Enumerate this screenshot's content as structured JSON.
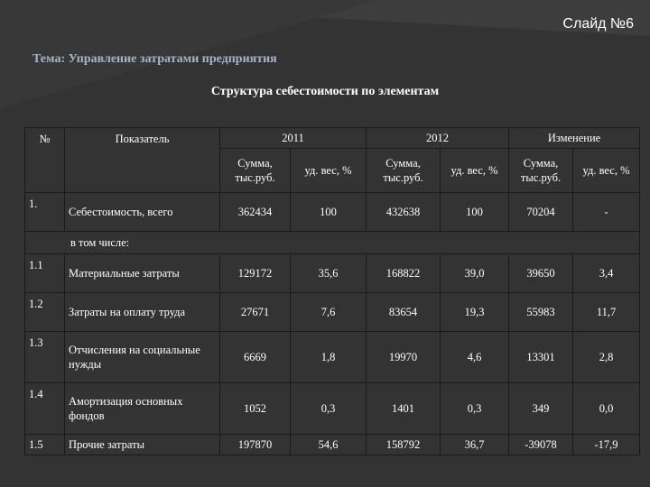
{
  "slide_label": "Слайд №6",
  "topic": "Тема: Управление затратами предприятия",
  "table_title": "Структура себестоимости по элементам",
  "table": {
    "header": {
      "num": "№",
      "indicator": "Показатель",
      "y2011": "2011",
      "y2012": "2012",
      "change": "Изменение",
      "sum": "Сумма, тыс.руб.",
      "share": "уд. вес, %"
    },
    "rows": [
      {
        "num": "1.",
        "name": "Себестоимость, всего",
        "s2011": "362434",
        "w2011": "100",
        "s2012": "432638",
        "w2012": "100",
        "sch": "70204",
        "wch": "-"
      },
      {
        "num": "1.1",
        "name": "Материальные затраты",
        "s2011": "129172",
        "w2011": "35,6",
        "s2012": "168822",
        "w2012": "39,0",
        "sch": "39650",
        "wch": "3,4"
      },
      {
        "num": "1.2",
        "name": "Затраты на оплату труда",
        "s2011": "27671",
        "w2011": "7,6",
        "s2012": "83654",
        "w2012": "19,3",
        "sch": "55983",
        "wch": "11,7"
      },
      {
        "num": "1.3",
        "name": "Отчисления на социальные нужды",
        "s2011": "6669",
        "w2011": "1,8",
        "s2012": "19970",
        "w2012": "4,6",
        "sch": "13301",
        "wch": "2,8"
      },
      {
        "num": "1.4",
        "name": "Амортизация основных фондов",
        "s2011": "1052",
        "w2011": "0,3",
        "s2012": "1401",
        "w2012": "0,3",
        "sch": "349",
        "wch": "0,0"
      },
      {
        "num": "1.5",
        "name": "Прочие затраты",
        "s2011": "197870",
        "w2011": "54,6",
        "s2012": "158792",
        "w2012": "36,7",
        "sch": "-39078",
        "wch": "-17,9"
      }
    ],
    "subheader": "в том числе:"
  }
}
